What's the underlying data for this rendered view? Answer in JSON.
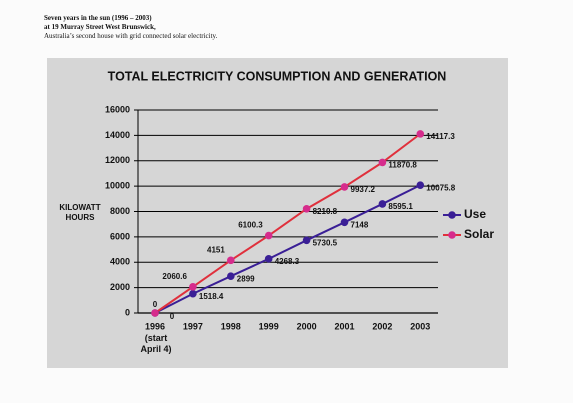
{
  "header": {
    "title": "Seven years in the sun  (1996 – 2003)",
    "address": "at 19 Murray Street West Brunswick,",
    "subtitle": "Australia’s second house with grid connected solar electricity."
  },
  "chart_data": {
    "type": "line",
    "title": "TOTAL ELECTRICITY CONSUMPTION AND GENERATION",
    "y_label_lines": [
      "KILOWATT",
      "HOURS"
    ],
    "x_note": "(start April 4)",
    "categories": [
      "1996",
      "1997",
      "1998",
      "1999",
      "2000",
      "2001",
      "2002",
      "2003"
    ],
    "series": [
      {
        "name": "Use",
        "color": "#3a1f96",
        "line_color": "#3a1f96",
        "values": [
          0,
          1518.4,
          2899,
          4268.3,
          5730.5,
          7148,
          8595.1,
          10075.8
        ]
      },
      {
        "name": "Solar",
        "color": "#d62c8c",
        "line_color": "#e0303c",
        "values": [
          0,
          2060.6,
          4151,
          6100.3,
          8210.8,
          9937.2,
          11870.8,
          14117.3
        ]
      }
    ],
    "ylim": [
      0,
      16000
    ],
    "yticks": [
      0,
      2000,
      4000,
      6000,
      8000,
      10000,
      12000,
      14000,
      16000
    ],
    "grid": true,
    "legend": "right"
  }
}
